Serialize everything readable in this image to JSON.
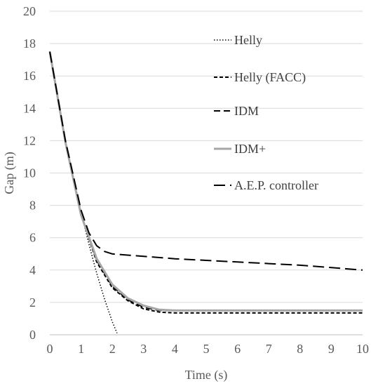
{
  "chart_data": {
    "type": "line",
    "xlabel": "Time (s)",
    "ylabel": "Gap (m)",
    "xlim": [
      0,
      10
    ],
    "ylim": [
      0,
      20
    ],
    "xticks": [
      "0",
      "1",
      "2",
      "3",
      "4",
      "5",
      "6",
      "7",
      "8",
      "9",
      "10"
    ],
    "yticks": [
      "0",
      "2",
      "4",
      "6",
      "8",
      "10",
      "12",
      "14",
      "16",
      "18",
      "20"
    ],
    "grid": "horizontal",
    "legend_position": "right",
    "series": [
      {
        "name": "Helly",
        "style": "dotted",
        "color": "#000000",
        "points": [
          [
            0,
            17.5
          ],
          [
            0.25,
            14.5
          ],
          [
            0.5,
            12.0
          ],
          [
            0.75,
            9.8
          ],
          [
            1.0,
            7.6
          ],
          [
            1.25,
            5.6
          ],
          [
            1.5,
            3.8
          ],
          [
            1.75,
            2.2
          ],
          [
            2.0,
            0.8
          ],
          [
            2.15,
            0.1
          ]
        ]
      },
      {
        "name": "Helly (FACC)",
        "style": "short-dash",
        "color": "#000000",
        "points": [
          [
            0,
            17.5
          ],
          [
            0.5,
            11.9
          ],
          [
            1.0,
            7.4
          ],
          [
            1.5,
            4.5
          ],
          [
            2.0,
            2.9
          ],
          [
            2.5,
            2.1
          ],
          [
            3.0,
            1.6
          ],
          [
            3.5,
            1.4
          ],
          [
            4.0,
            1.35
          ],
          [
            5,
            1.35
          ],
          [
            6,
            1.35
          ],
          [
            7,
            1.35
          ],
          [
            8,
            1.35
          ],
          [
            9,
            1.35
          ],
          [
            10,
            1.35
          ]
        ]
      },
      {
        "name": "IDM",
        "style": "dash",
        "color": "#000000",
        "points": [
          [
            0,
            17.5
          ],
          [
            0.5,
            11.9
          ],
          [
            1.0,
            7.4
          ],
          [
            1.5,
            4.6
          ],
          [
            2.0,
            3.0
          ],
          [
            2.5,
            2.15
          ],
          [
            3.0,
            1.7
          ],
          [
            3.5,
            1.5
          ],
          [
            4.0,
            1.5
          ],
          [
            5,
            1.5
          ],
          [
            6,
            1.5
          ],
          [
            7,
            1.5
          ],
          [
            8,
            1.5
          ],
          [
            9,
            1.5
          ],
          [
            10,
            1.5
          ]
        ]
      },
      {
        "name": "IDM+",
        "style": "solid-double",
        "color": "#a6a6a6",
        "points": [
          [
            0,
            17.5
          ],
          [
            0.5,
            11.9
          ],
          [
            1.0,
            7.4
          ],
          [
            1.5,
            4.7
          ],
          [
            2.0,
            3.1
          ],
          [
            2.5,
            2.25
          ],
          [
            3.0,
            1.8
          ],
          [
            3.5,
            1.55
          ],
          [
            4.0,
            1.5
          ],
          [
            5,
            1.5
          ],
          [
            6,
            1.5
          ],
          [
            7,
            1.5
          ],
          [
            8,
            1.5
          ],
          [
            9,
            1.5
          ],
          [
            10,
            1.5
          ]
        ]
      },
      {
        "name": "A.E.P. controller",
        "style": "long-dash",
        "color": "#000000",
        "points": [
          [
            0,
            17.5
          ],
          [
            0.5,
            12.0
          ],
          [
            1.0,
            7.7
          ],
          [
            1.25,
            6.3
          ],
          [
            1.5,
            5.5
          ],
          [
            1.75,
            5.15
          ],
          [
            2.0,
            5.0
          ],
          [
            3,
            4.85
          ],
          [
            4,
            4.7
          ],
          [
            5,
            4.6
          ],
          [
            6,
            4.5
          ],
          [
            7,
            4.4
          ],
          [
            8,
            4.3
          ],
          [
            9,
            4.15
          ],
          [
            10,
            4.0
          ]
        ]
      }
    ]
  }
}
